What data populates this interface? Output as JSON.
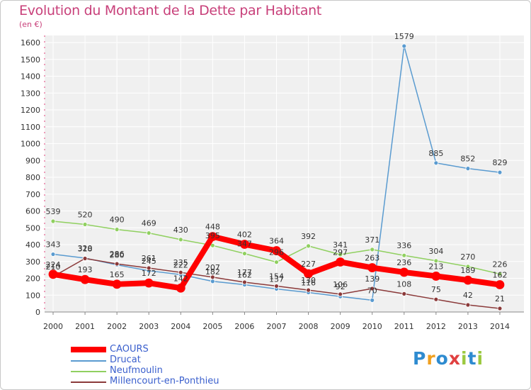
{
  "title": "Evolution du Montant de la Dette par Habitant",
  "unit": "(en €)",
  "logo": {
    "text": "Proxiti",
    "colors": [
      "#2e8bd0",
      "#f0a020",
      "#2e8bd0",
      "#e04040",
      "#9bc940",
      "#2e8bd0",
      "#9bc940"
    ]
  },
  "chart_data": {
    "type": "line",
    "title": "Evolution du Montant de la Dette par Habitant",
    "ylabel": "(en €)",
    "xlabel": "",
    "x": [
      "2000",
      "2001",
      "2002",
      "2003",
      "2004",
      "2005",
      "2006",
      "2007",
      "2008",
      "2009",
      "2010",
      "2011",
      "2012",
      "2013",
      "2014"
    ],
    "y_ticks": [
      0,
      100,
      200,
      300,
      400,
      500,
      600,
      700,
      800,
      900,
      1000,
      1100,
      1200,
      1300,
      1400,
      1500,
      1600
    ],
    "ylim": [
      0,
      1600
    ],
    "grid": true,
    "legend_position": "bottom-left",
    "series": [
      {
        "name": "CAOURS",
        "color": "#ff0000",
        "values": [
          224,
          193,
          165,
          172,
          142,
          448,
          402,
          364,
          227,
          297,
          263,
          236,
          213,
          189,
          162
        ]
      },
      {
        "name": "Drucat",
        "color": "#5a9bd0",
        "values": [
          343,
          320,
          280,
          245,
          222,
          182,
          162,
          137,
          116,
          92,
          70,
          1579,
          885,
          852,
          829
        ]
      },
      {
        "name": "Neufmoulin",
        "color": "#90d060",
        "values": [
          539,
          520,
          490,
          469,
          430,
          395,
          347,
          296,
          392,
          341,
          371,
          336,
          304,
          270,
          226
        ]
      },
      {
        "name": "Millencourt-en-Ponthieu",
        "color": "#8b3a3a",
        "values": [
          210,
          318,
          286,
          261,
          235,
          207,
          177,
          154,
          130,
          106,
          139,
          108,
          75,
          42,
          21
        ]
      }
    ]
  }
}
